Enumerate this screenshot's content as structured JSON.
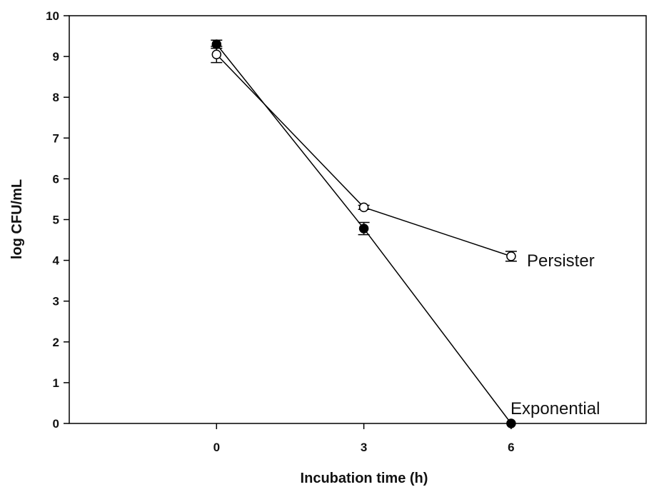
{
  "chart_data": {
    "type": "line",
    "title": "",
    "xlabel": "Incubation time (h)",
    "ylabel": "log CFU/mL",
    "x": [
      0,
      3,
      6
    ],
    "x_tick_labels": [
      "0",
      "3",
      "6"
    ],
    "y_tick_labels": [
      "0",
      "1",
      "2",
      "3",
      "4",
      "5",
      "6",
      "7",
      "8",
      "9",
      "10"
    ],
    "xlim": [
      -3,
      8.75
    ],
    "ylim": [
      0,
      10
    ],
    "grid": false,
    "legend": "none",
    "series": [
      {
        "name": "Persister",
        "marker": "open-circle",
        "color": "#000000",
        "values": [
          9.05,
          5.3,
          4.1
        ],
        "errors": [
          0.2,
          0.05,
          0.12
        ]
      },
      {
        "name": "Exponential",
        "marker": "filled-circle",
        "color": "#000000",
        "values": [
          9.3,
          4.78,
          0.0
        ],
        "errors": [
          0.1,
          0.15,
          0.0
        ]
      }
    ]
  }
}
